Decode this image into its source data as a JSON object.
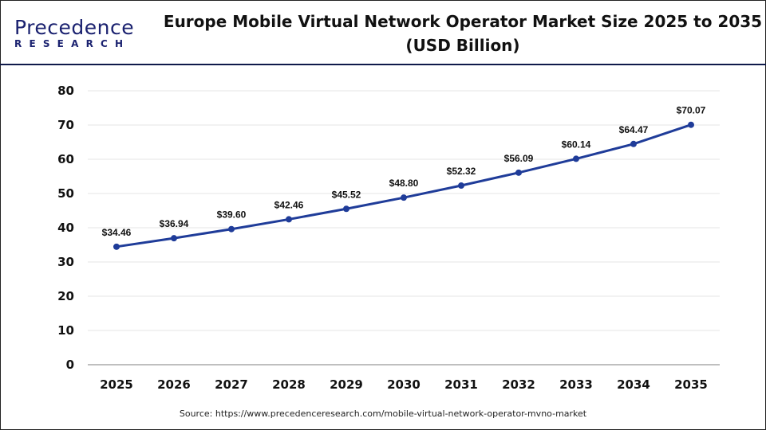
{
  "brand": {
    "name_line1": "Precedence",
    "name_line2": "RESEARCH"
  },
  "title": "Europe Mobile Virtual Network Operator Market Size 2025 to 2035 (USD Billion)",
  "source": "Source: https://www.precedenceresearch.com/mobile-virtual-network-operator-mvno-market",
  "colors": {
    "line": "#1f3c99",
    "grid": "#e6e6e6",
    "axis": "#bfbfbf",
    "brand": "#1b2270"
  },
  "chart_data": {
    "type": "line",
    "title": "Europe Mobile Virtual Network Operator Market Size 2025 to 2035 (USD Billion)",
    "categories": [
      "2025",
      "2026",
      "2027",
      "2028",
      "2029",
      "2030",
      "2031",
      "2032",
      "2033",
      "2034",
      "2035"
    ],
    "values": [
      34.46,
      36.94,
      39.6,
      42.46,
      45.52,
      48.8,
      52.32,
      56.09,
      60.14,
      64.47,
      70.07
    ],
    "labels": [
      "$34.46",
      "$36.94",
      "$39.60",
      "$42.46",
      "$45.52",
      "$48.80",
      "$52.32",
      "$56.09",
      "$60.14",
      "$64.47",
      "$70.07"
    ],
    "yticks": [
      0,
      10,
      20,
      30,
      40,
      50,
      60,
      70,
      80
    ],
    "ylim": [
      0,
      80
    ],
    "grid": true,
    "legend": "none"
  }
}
